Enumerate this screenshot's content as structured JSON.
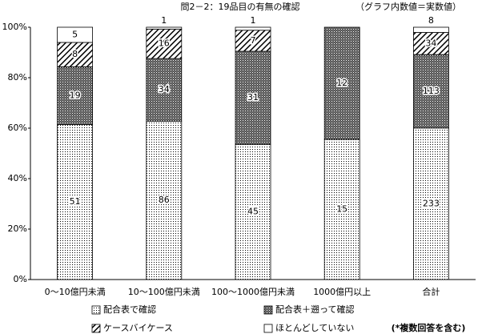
{
  "chart_data": {
    "type": "bar",
    "stacking": "percent",
    "title": "問2－2：19品目の有無の確認",
    "subtitle": "（グラフ内数値＝実数値）",
    "footnote": "(*複数回答を含む)",
    "categories": [
      "0～10億円未満",
      "10～100億円未満",
      "100～1000億円未満",
      "1000億円以上",
      "合計"
    ],
    "series": [
      {
        "name": "配合表で確認",
        "color": "#000000",
        "pattern": "dots",
        "values": [
          51,
          86,
          45,
          15,
          233
        ]
      },
      {
        "name": "配合表＋遡って確認",
        "color": "#000000",
        "pattern": "cross",
        "values": [
          19,
          34,
          31,
          12,
          113
        ]
      },
      {
        "name": "ケースバイケース",
        "color": "#000000",
        "pattern": "diagonal",
        "values": [
          8,
          16,
          7,
          0,
          34
        ]
      },
      {
        "name": "ほとんどしていない",
        "color": "#000000",
        "pattern": "none",
        "values": [
          5,
          1,
          1,
          0,
          8
        ]
      }
    ],
    "ylim": [
      0,
      100
    ],
    "yticks": [
      {
        "value": 0,
        "label": "0%"
      },
      {
        "value": 20,
        "label": "20%"
      },
      {
        "value": 40,
        "label": "40%"
      },
      {
        "value": 60,
        "label": "60%"
      },
      {
        "value": 80,
        "label": "80%"
      },
      {
        "value": 100,
        "label": "100%"
      }
    ]
  }
}
